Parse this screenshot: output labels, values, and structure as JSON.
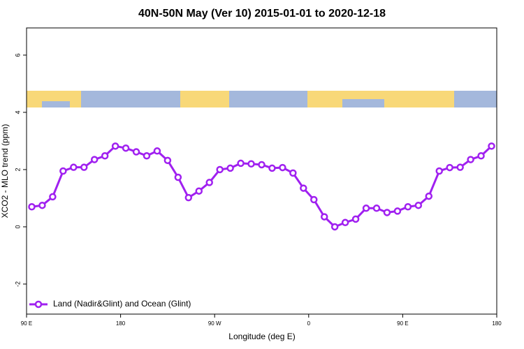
{
  "chart_data": {
    "type": "line",
    "title": "40N-50N May (Ver 10)   2015-01-01 to 2020-12-18",
    "x_label": "Longitude (deg E)",
    "y_label": "XCO2 - MLO trend (ppm)",
    "x": [
      95,
      105,
      115,
      125,
      135,
      145,
      155,
      165,
      175,
      185,
      195,
      205,
      215,
      225,
      235,
      245,
      255,
      265,
      275,
      285,
      295,
      305,
      315,
      325,
      335,
      345,
      355,
      365,
      375,
      385,
      395,
      405,
      415,
      425,
      435,
      445,
      455,
      465,
      475,
      485,
      495,
      505,
      515,
      525,
      535
    ],
    "series": [
      {
        "name": "Land (Nadir&Glint) and Ocean (Glint)",
        "color": "#a020f0",
        "values": [
          0.7,
          0.75,
          1.05,
          1.95,
          2.08,
          2.08,
          2.35,
          2.48,
          2.82,
          2.75,
          2.62,
          2.48,
          2.65,
          2.32,
          1.73,
          1.02,
          1.25,
          1.55,
          2.0,
          2.05,
          2.22,
          2.2,
          2.17,
          2.05,
          2.07,
          1.88,
          1.35,
          0.95,
          0.35,
          0.0,
          0.15,
          0.27,
          0.65,
          0.65,
          0.5,
          0.55,
          0.7,
          0.75,
          1.07,
          1.95,
          2.07,
          2.08,
          2.35,
          2.48,
          2.82
        ]
      }
    ],
    "xlim": [
      90,
      540
    ],
    "xticks": [
      {
        "value": 90,
        "label": "90 E"
      },
      180,
      {
        "value": 270,
        "label": "90 W"
      },
      {
        "value": 360,
        "label": "0"
      },
      {
        "value": 450,
        "label": "90 E"
      },
      {
        "value": 540,
        "label": "180"
      }
    ],
    "ylim": [
      -3.05,
      6.95
    ],
    "yticks": [
      -2,
      0,
      2,
      4,
      6
    ],
    "legend": "bottom-left"
  }
}
